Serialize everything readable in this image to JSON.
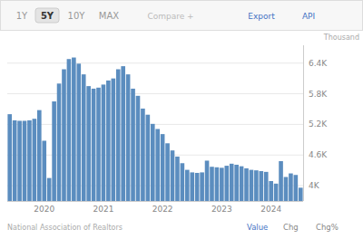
{
  "chart_data": {
    "type": "bar",
    "ylabel": "Thousand",
    "categories": [
      null,
      null,
      null,
      null,
      null,
      null,
      null,
      "2020",
      null,
      null,
      null,
      null,
      null,
      null,
      null,
      null,
      null,
      null,
      null,
      "2021",
      null,
      null,
      null,
      null,
      null,
      null,
      null,
      null,
      null,
      null,
      null,
      "2022",
      null,
      null,
      null,
      null,
      null,
      null,
      null,
      null,
      null,
      null,
      null,
      "2023",
      null,
      null,
      null,
      null,
      null,
      null,
      null,
      null,
      null,
      "2024",
      null,
      null,
      null,
      null,
      null,
      null
    ],
    "values": [
      5400,
      5280,
      5270,
      5270,
      5280,
      5310,
      5480,
      4880,
      4150,
      5650,
      6000,
      6280,
      6480,
      6510,
      6390,
      6180,
      5950,
      5900,
      5920,
      5980,
      6060,
      6100,
      6280,
      6340,
      6180,
      5900,
      5760,
      5510,
      5390,
      5210,
      5110,
      5010,
      4830,
      4690,
      4570,
      4440,
      4310,
      4260,
      4250,
      4260,
      4490,
      4370,
      4360,
      4350,
      4390,
      4430,
      4410,
      4380,
      4340,
      4310,
      4300,
      4285,
      4270,
      4090,
      4040,
      4480,
      4170,
      4240,
      4210,
      3960
    ],
    "color": "#5b8dbf",
    "ylim": [
      3700,
      6750
    ],
    "yticks": [
      {
        "value": 4000,
        "label": "4K"
      },
      {
        "value": 4600,
        "label": "4.6K"
      },
      {
        "value": 5200,
        "label": "5.2K"
      },
      {
        "value": 5800,
        "label": "5.8K"
      },
      {
        "value": 6400,
        "label": "6.4K"
      }
    ],
    "grid": true,
    "annotations": [
      "1Y",
      "5Y",
      "10Y",
      "MAX",
      "Compare +",
      "Export",
      "API",
      "National Association of Realtors",
      "Value",
      "Chg",
      "Chg%"
    ]
  }
}
